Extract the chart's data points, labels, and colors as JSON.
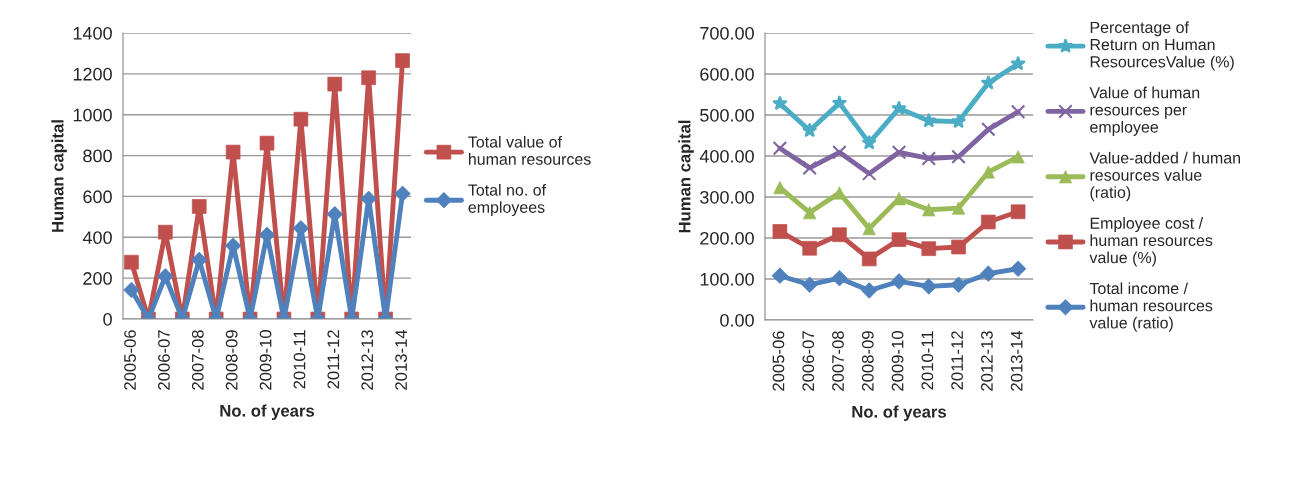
{
  "chart_data": [
    {
      "type": "line",
      "xlabel": "No. of years",
      "ylabel": "Human capital",
      "categories": [
        "2005-06",
        null,
        "2006-07",
        null,
        "2007-08",
        null,
        "2008-09",
        null,
        "2009-10",
        null,
        "2010-11",
        null,
        "2011-12",
        null,
        "2012-13",
        null,
        "2013-14"
      ],
      "series": [
        {
          "name": "Total value of human resources",
          "color": "#c0504d",
          "marker": "square",
          "values": [
            278,
            0,
            425,
            0,
            551,
            0,
            817,
            0,
            861,
            0,
            978,
            0,
            1150,
            0,
            1181,
            0,
            1265
          ]
        },
        {
          "name": "Total no. of employees",
          "color": "#4f81bd",
          "marker": "diamond",
          "values": [
            142,
            0,
            209,
            0,
            289,
            0,
            359,
            0,
            412,
            0,
            444,
            0,
            513,
            0,
            588,
            0,
            613
          ]
        }
      ],
      "ylim": [
        0,
        1400
      ],
      "yticks": [
        0,
        200,
        400,
        600,
        800,
        1000,
        1200,
        1400
      ],
      "grid": "y",
      "legend": "right"
    },
    {
      "type": "line",
      "xlabel": "No. of years",
      "ylabel": "Human capital",
      "categories": [
        "2005-06",
        "2006-07",
        "2007-08",
        "2008-09",
        "2009-10",
        "2010-11",
        "2011-12",
        "2012-13",
        "2013-14"
      ],
      "series": [
        {
          "name": "Percentage of Return on Human ResourcesValue (%)",
          "color": "#4bacc6",
          "marker": "star",
          "values": [
            528,
            462,
            529,
            432,
            516,
            486,
            484,
            578,
            625
          ]
        },
        {
          "name": "Value of human resources per employee",
          "color": "#8064a2",
          "marker": "cross",
          "values": [
            419,
            371,
            409,
            357,
            409,
            394,
            398,
            465,
            508
          ]
        },
        {
          "name": "Value-added / human resources value (ratio)",
          "color": "#9bbb59",
          "marker": "triangle",
          "values": [
            323,
            262,
            310,
            223,
            296,
            269,
            273,
            361,
            398
          ]
        },
        {
          "name": "Employee cost / human resources value (%)",
          "color": "#c0504d",
          "marker": "square",
          "values": [
            216,
            175,
            208,
            149,
            196,
            174,
            178,
            239,
            264
          ]
        },
        {
          "name": "Total income / human resources value (ratio)",
          "color": "#4f81bd",
          "marker": "diamond",
          "values": [
            108,
            86,
            102,
            72,
            94,
            82,
            86,
            113,
            125
          ]
        }
      ],
      "ylim": [
        0,
        700
      ],
      "yticks": [
        {
          "value": 0,
          "label": "0.00"
        },
        {
          "value": 100,
          "label": "100.00"
        },
        {
          "value": 200,
          "label": "200.00"
        },
        {
          "value": 300,
          "label": "300.00"
        },
        {
          "value": 400,
          "label": "400.00"
        },
        {
          "value": 500,
          "label": "500.00"
        },
        {
          "value": 600,
          "label": "600.00"
        },
        {
          "value": 700,
          "label": "700.00"
        }
      ],
      "grid": "y",
      "legend": "right"
    }
  ]
}
